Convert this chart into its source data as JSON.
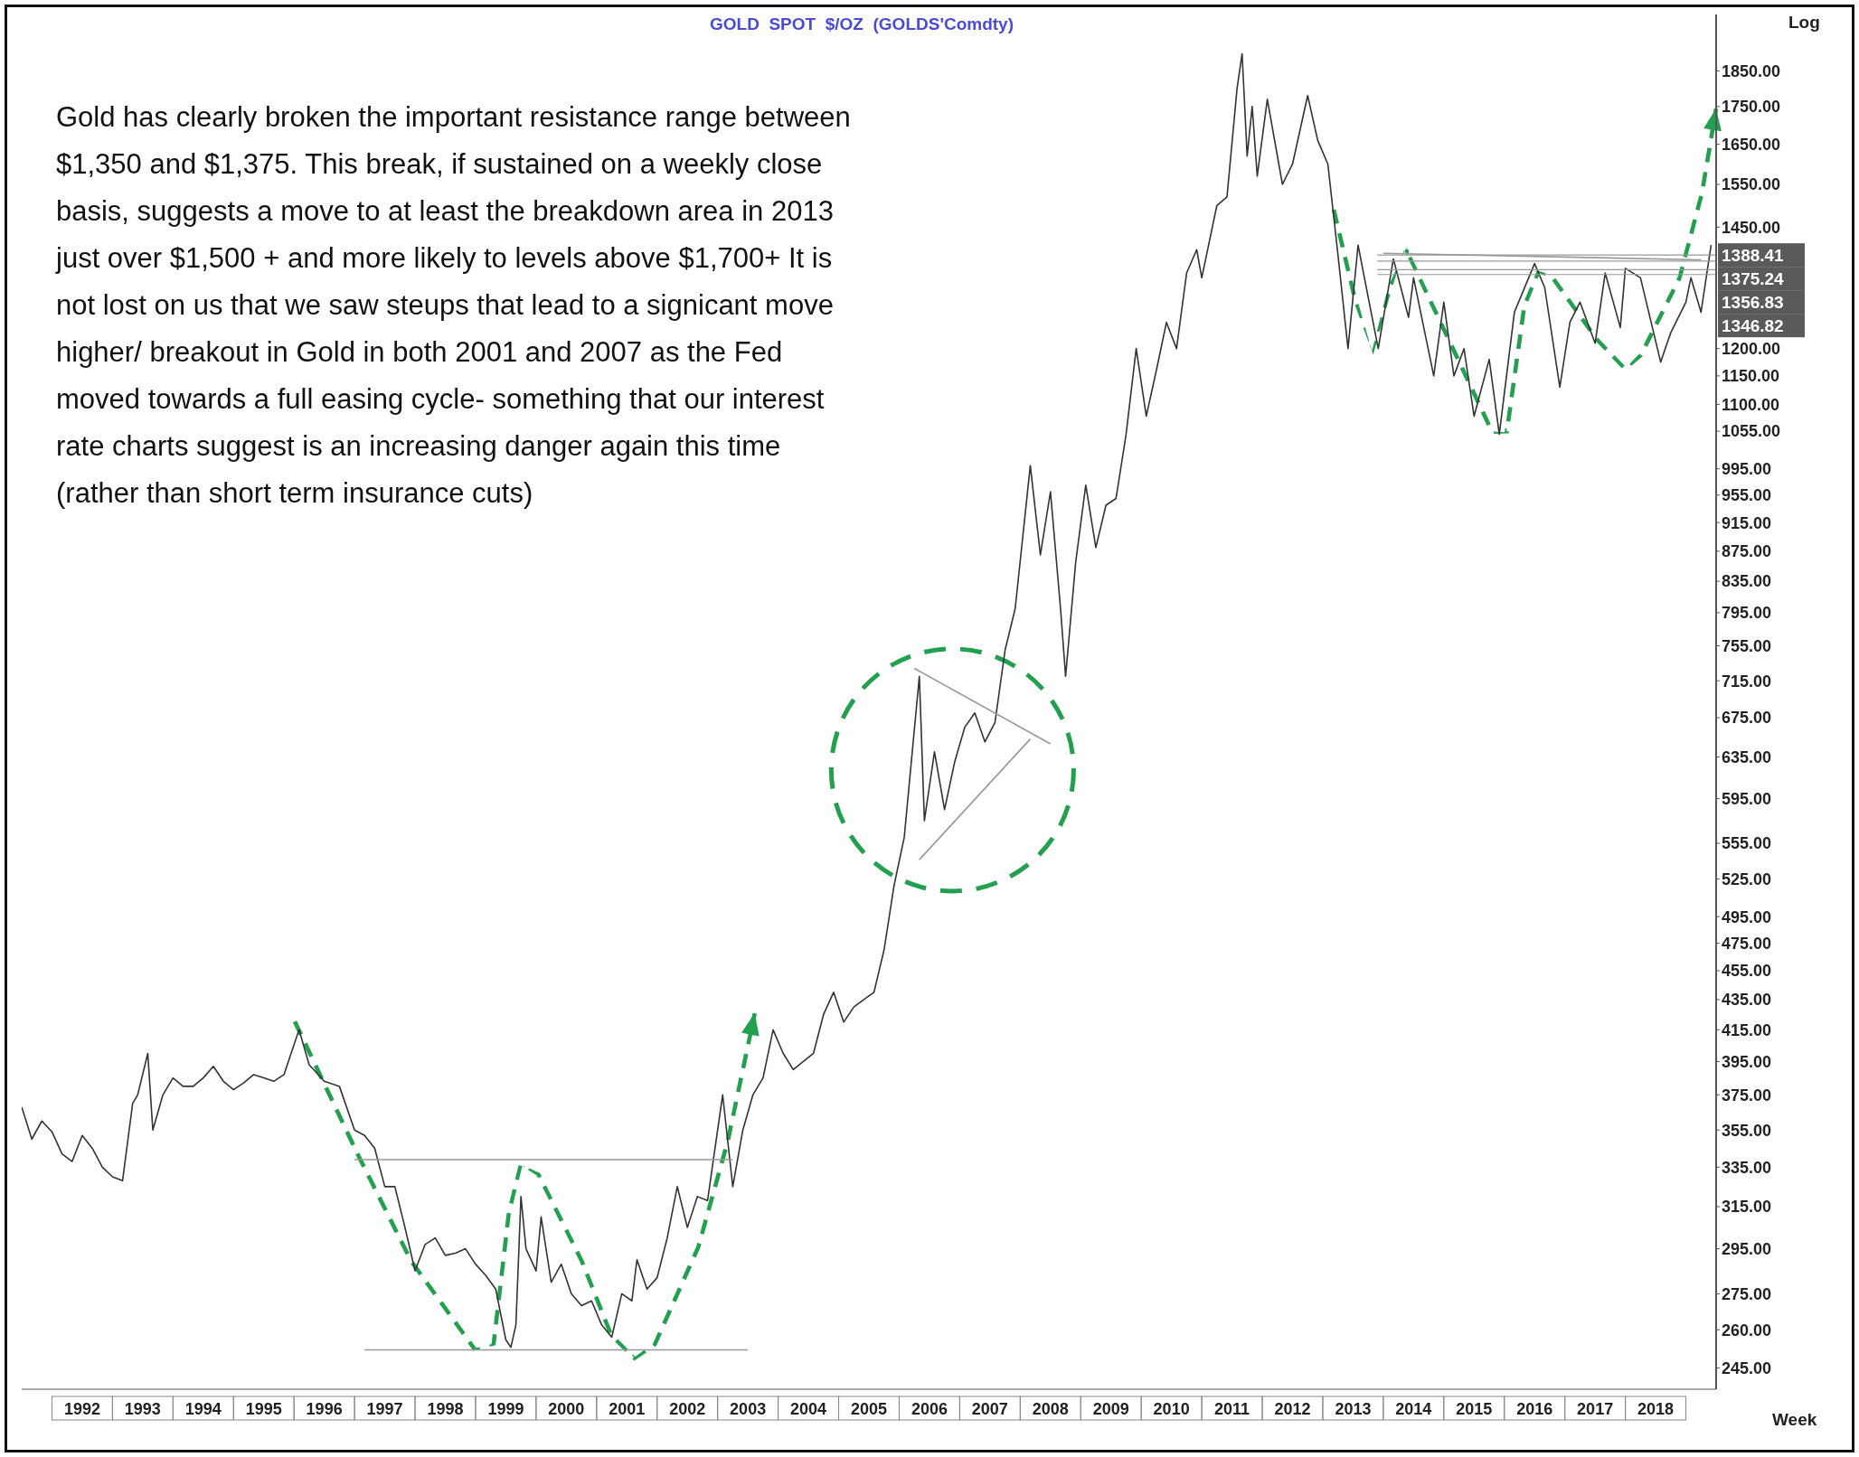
{
  "chart_data": {
    "type": "line",
    "title": "GOLD  SPOT  $/OZ  (GOLDS'Comdty)",
    "annotations": [
      "Gold has clearly broken the important resistance range between $1,350 and $1,375. This break, if sustained on a weekly close basis, suggests a move to at least the breakdown area in 2013 just over $1,500 + and more likely to levels above $1,700+ It is not lost on us that we saw steups that lead to a signicant move higher/ breakout in Gold in both 2001 and 2007 as the Fed moved towards a full easing cycle- something that our interest rate charts suggest is an increasing danger again this time (rather than short term insurance cuts)",
      "Log",
      "Week"
    ],
    "x": [
      "1991-07",
      "1991-09",
      "1991-11",
      "1992-01",
      "1992-03",
      "1992-05",
      "1992-07",
      "1992-09",
      "1992-11",
      "1993-01",
      "1993-03",
      "1993-05",
      "1993-06",
      "1993-08",
      "1993-09",
      "1993-11",
      "1994-01",
      "1994-03",
      "1994-05",
      "1994-07",
      "1994-09",
      "1994-11",
      "1995-01",
      "1995-03",
      "1995-05",
      "1995-07",
      "1995-09",
      "1995-11",
      "1996-02",
      "1996-04",
      "1996-07",
      "1996-10",
      "1997-01",
      "1997-03",
      "1997-05",
      "1997-07",
      "1997-09",
      "1997-11",
      "1998-01",
      "1998-03",
      "1998-05",
      "1998-07",
      "1998-09",
      "1998-11",
      "1999-01",
      "1999-03",
      "1999-05",
      "1999-07",
      "1999-08",
      "1999-09",
      "1999-10",
      "1999-11",
      "2000-01",
      "2000-02",
      "2000-04",
      "2000-06",
      "2000-08",
      "2000-10",
      "2000-12",
      "2001-02",
      "2001-04",
      "2001-06",
      "2001-08",
      "2001-09",
      "2001-11",
      "2002-01",
      "2002-03",
      "2002-05",
      "2002-07",
      "2002-09",
      "2002-11",
      "2003-01",
      "2003-02",
      "2003-04",
      "2003-06",
      "2003-08",
      "2003-10",
      "2003-12",
      "2004-02",
      "2004-04",
      "2004-06",
      "2004-08",
      "2004-10",
      "2004-12",
      "2005-02",
      "2005-04",
      "2005-06",
      "2005-08",
      "2005-10",
      "2005-12",
      "2006-02",
      "2006-05",
      "2006-06",
      "2006-08",
      "2006-10",
      "2006-12",
      "2007-02",
      "2007-04",
      "2007-06",
      "2007-08",
      "2007-10",
      "2007-12",
      "2008-03",
      "2008-05",
      "2008-07",
      "2008-09",
      "2008-10",
      "2008-12",
      "2009-02",
      "2009-04",
      "2009-06",
      "2009-08",
      "2009-10",
      "2009-12",
      "2010-02",
      "2010-04",
      "2010-06",
      "2010-08",
      "2010-10",
      "2010-12",
      "2011-01",
      "2011-04",
      "2011-06",
      "2011-08",
      "2011-09",
      "2011-10",
      "2011-11",
      "2011-12",
      "2012-02",
      "2012-05",
      "2012-07",
      "2012-10",
      "2012-12",
      "2013-02",
      "2013-04",
      "2013-06",
      "2013-08",
      "2013-10",
      "2013-12",
      "2014-03",
      "2014-06",
      "2014-07",
      "2014-11",
      "2015-01",
      "2015-03",
      "2015-05",
      "2015-07",
      "2015-10",
      "2015-12",
      "2016-03",
      "2016-07",
      "2016-09",
      "2016-12",
      "2017-02",
      "2017-04",
      "2017-07",
      "2017-09",
      "2017-12",
      "2018-01",
      "2018-04",
      "2018-08",
      "2018-10",
      "2019-01",
      "2019-02",
      "2019-04",
      "2019-06"
    ],
    "series": [
      {
        "color": "#333333",
        "values": [
          368,
          350,
          360,
          354,
          342,
          338,
          352,
          345,
          335,
          330,
          328,
          370,
          375,
          400,
          355,
          375,
          385,
          380,
          380,
          385,
          392,
          383,
          378,
          382,
          387,
          385,
          383,
          387,
          415,
          393,
          383,
          380,
          355,
          352,
          345,
          325,
          325,
          305,
          285,
          297,
          300,
          292,
          293,
          295,
          288,
          283,
          277,
          256,
          253,
          262,
          320,
          295,
          285,
          310,
          280,
          288,
          275,
          270,
          272,
          262,
          257,
          275,
          272,
          290,
          277,
          282,
          300,
          325,
          305,
          320,
          318,
          355,
          375,
          325,
          355,
          375,
          385,
          415,
          400,
          390,
          395,
          400,
          425,
          440,
          420,
          430,
          435,
          440,
          470,
          520,
          560,
          720,
          575,
          640,
          585,
          630,
          665,
          680,
          650,
          670,
          750,
          800,
          1000,
          870,
          960,
          800,
          720,
          860,
          970,
          880,
          940,
          950,
          1050,
          1200,
          1080,
          1160,
          1250,
          1200,
          1350,
          1400,
          1340,
          1500,
          1520,
          1800,
          1900,
          1620,
          1750,
          1570,
          1770,
          1550,
          1600,
          1780,
          1660,
          1600,
          1390,
          1200,
          1410,
          1300,
          1200,
          1380,
          1260,
          1340,
          1150,
          1290,
          1150,
          1200,
          1080,
          1180,
          1050,
          1270,
          1370,
          1320,
          1130,
          1250,
          1290,
          1210,
          1350,
          1240,
          1360,
          1340,
          1175,
          1230,
          1290,
          1340,
          1270,
          1410
        ]
      },
      {
        "type": "line",
        "color": "#999999",
        "x": [
          "1997-01",
          "2003-04"
        ],
        "values": [
          339,
          339
        ]
      },
      {
        "type": "line",
        "color": "#999999",
        "x": [
          "1997-03",
          "2003-07"
        ],
        "values": [
          252,
          252
        ]
      },
      {
        "type": "line",
        "color": "#999999",
        "x": [
          "2006-04",
          "2008-07"
        ],
        "values": [
          729,
          648
        ]
      },
      {
        "type": "line",
        "color": "#999999",
        "x": [
          "2006-05",
          "2008-03"
        ],
        "values": [
          541,
          653
        ]
      },
      {
        "type": "line",
        "color": "#999999",
        "x": [
          "2014-01",
          "2019-04"
        ],
        "values": [
          1392,
          1378
        ]
      }
    ],
    "xlim": [
      "1991-07",
      "2019-07"
    ],
    "xticks": [
      {
        "value": "1992-07",
        "label": "1992"
      },
      {
        "value": "1993-07",
        "label": "1993"
      },
      {
        "value": "1994-07",
        "label": "1994"
      },
      {
        "value": "1995-07",
        "label": "1995"
      },
      {
        "value": "1996-07",
        "label": "1996"
      },
      {
        "value": "1997-07",
        "label": "1997"
      },
      {
        "value": "1998-07",
        "label": "1998"
      },
      {
        "value": "1999-07",
        "label": "1999"
      },
      {
        "value": "2000-07",
        "label": "2000"
      },
      {
        "value": "2001-07",
        "label": "2001"
      },
      {
        "value": "2002-07",
        "label": "2002"
      },
      {
        "value": "2003-07",
        "label": "2003"
      },
      {
        "value": "2004-07",
        "label": "2004"
      },
      {
        "value": "2005-07",
        "label": "2005"
      },
      {
        "value": "2006-07",
        "label": "2006"
      },
      {
        "value": "2007-07",
        "label": "2007"
      },
      {
        "value": "2008-07",
        "label": "2008"
      },
      {
        "value": "2009-07",
        "label": "2009"
      },
      {
        "value": "2010-07",
        "label": "2010"
      },
      {
        "value": "2011-07",
        "label": "2011"
      },
      {
        "value": "2012-07",
        "label": "2012"
      },
      {
        "value": "2013-07",
        "label": "2013"
      },
      {
        "value": "2014-07",
        "label": "2014"
      },
      {
        "value": "2015-07",
        "label": "2015"
      },
      {
        "value": "2016-07",
        "label": "2016"
      },
      {
        "value": "2017-07",
        "label": "2017"
      },
      {
        "value": "2018-07",
        "label": "2018"
      }
    ],
    "ylim": [
      237,
      2020
    ],
    "yticks": [
      {
        "value": 1850,
        "label": "1850.00"
      },
      {
        "value": 1750,
        "label": "1750.00"
      },
      {
        "value": 1650,
        "label": "1650.00"
      },
      {
        "value": 1550,
        "label": "1550.00"
      },
      {
        "value": 1450,
        "label": "1450.00"
      },
      {
        "value": 1200,
        "label": "1200.00"
      },
      {
        "value": 1150,
        "label": "1150.00"
      },
      {
        "value": 1100,
        "label": "1100.00"
      },
      {
        "value": 1055,
        "label": "1055.00"
      },
      {
        "value": 995,
        "label": "995.00"
      },
      {
        "value": 955,
        "label": "955.00"
      },
      {
        "value": 915,
        "label": "915.00"
      },
      {
        "value": 875,
        "label": "875.00"
      },
      {
        "value": 835,
        "label": "835.00"
      },
      {
        "value": 795,
        "label": "795.00"
      },
      {
        "value": 755,
        "label": "755.00"
      },
      {
        "value": 715,
        "label": "715.00"
      },
      {
        "value": 675,
        "label": "675.00"
      },
      {
        "value": 635,
        "label": "635.00"
      },
      {
        "value": 595,
        "label": "595.00"
      },
      {
        "value": 555,
        "label": "555.00"
      },
      {
        "value": 525,
        "label": "525.00"
      },
      {
        "value": 495,
        "label": "495.00"
      },
      {
        "value": 475,
        "label": "475.00"
      },
      {
        "value": 455,
        "label": "455.00"
      },
      {
        "value": 435,
        "label": "435.00"
      },
      {
        "value": 415,
        "label": "415.00"
      },
      {
        "value": 395,
        "label": "395.00"
      },
      {
        "value": 375,
        "label": "375.00"
      },
      {
        "value": 355,
        "label": "355.00"
      },
      {
        "value": 335,
        "label": "335.00"
      },
      {
        "value": 315,
        "label": "315.00"
      },
      {
        "value": 295,
        "label": "295.00"
      },
      {
        "value": 275,
        "label": "275.00"
      },
      {
        "value": 260,
        "label": "260.00"
      },
      {
        "value": 245,
        "label": "245.00"
      }
    ],
    "log": true,
    "ref_lines": [
      {
        "axis": "y",
        "value": 1388.41,
        "label": "1388.41",
        "color": "#999999"
      },
      {
        "axis": "y",
        "value": 1375.24,
        "label": "1375.24",
        "color": "#999999"
      },
      {
        "axis": "y",
        "value": 1356.83,
        "label": "1356.83",
        "color": "#999999"
      },
      {
        "axis": "y",
        "value": 1346.82,
        "label": "1346.82",
        "color": "#999999"
      }
    ]
  }
}
